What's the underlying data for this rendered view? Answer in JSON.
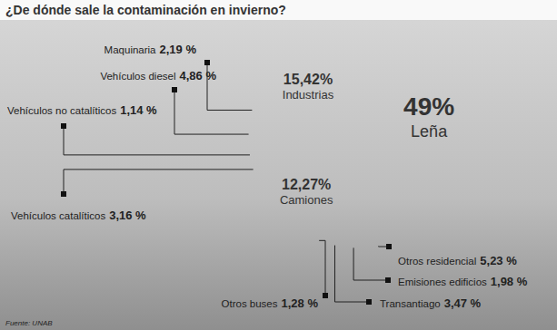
{
  "chart_data": {
    "type": "pie",
    "title": "¿De dónde sale la contaminación en invierno?",
    "source": "Fuente: UNAB",
    "categories": [
      "Leña",
      "Otros residencial",
      "Emisiones edificios",
      "Transantiago",
      "Otros buses",
      "Camiones",
      "Vehículos catalíticos",
      "Vehículos no catalíticos",
      "Vehículos diesel",
      "Maquinaria",
      "Industrias"
    ],
    "values": [
      49,
      5.23,
      1.98,
      3.47,
      1.28,
      12.27,
      3.16,
      1.14,
      4.86,
      2.19,
      15.42
    ],
    "value_labels": [
      "49%",
      "5,23 %",
      "1,98 %",
      "3,47 %",
      "1,28 %",
      "12,27%",
      "3,16 %",
      "1,14 %",
      "4,86 %",
      "2,19 %",
      "15,42%"
    ],
    "colors": [
      "#f9d7ad",
      "#a9d8ee",
      "#f2a898",
      "#b9dfae",
      "#d3ecc6",
      "#d7f0fa",
      "#bfe4f4",
      "#9fcfe6",
      "#c2e6b4",
      "#ddefca",
      "#f7c283"
    ],
    "data_labels": true
  }
}
